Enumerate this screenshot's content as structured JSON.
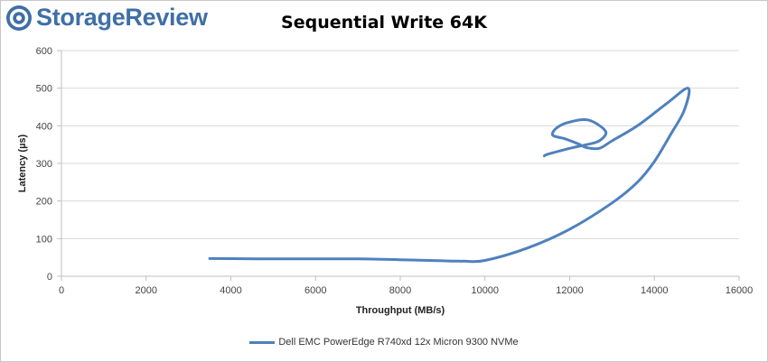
{
  "brand": {
    "name": "StorageReview",
    "logo_icon": "storagereview-logo-icon"
  },
  "colors": {
    "series": "#4f81bd",
    "grid": "#d9d9d9",
    "axis": "#bfbfbf",
    "brand": "#3f6fa6"
  },
  "chart_data": {
    "type": "line",
    "title": "Sequential Write 64K",
    "xlabel": "Throughput (MB/s)",
    "ylabel": "Latency (µs)",
    "xlim": [
      0,
      16000
    ],
    "ylim": [
      0,
      600
    ],
    "xticks": [
      0,
      2000,
      4000,
      6000,
      8000,
      10000,
      12000,
      14000,
      16000
    ],
    "yticks": [
      0,
      100,
      200,
      300,
      400,
      500,
      600
    ],
    "grid": "horizontal",
    "legend_position": "bottom",
    "series": [
      {
        "name": "Dell EMC PowerEdge R740xd 12x Micron 9300 NVMe",
        "x": [
          3500,
          5500,
          7000,
          8000,
          9000,
          9500,
          10000,
          11000,
          12000,
          13000,
          13600,
          14000,
          14400,
          14700,
          14800,
          14300,
          13600,
          13000,
          12700,
          12400,
          12200,
          11900,
          11600,
          11700,
          12000,
          12450,
          12850,
          12700,
          12400,
          12000,
          11500,
          11400
        ],
        "y": [
          47,
          46,
          46,
          44,
          41,
          40,
          42,
          75,
          125,
          195,
          250,
          305,
          380,
          440,
          500,
          460,
          400,
          360,
          340,
          342,
          352,
          365,
          375,
          395,
          410,
          415,
          385,
          360,
          350,
          340,
          325,
          320
        ]
      }
    ]
  }
}
